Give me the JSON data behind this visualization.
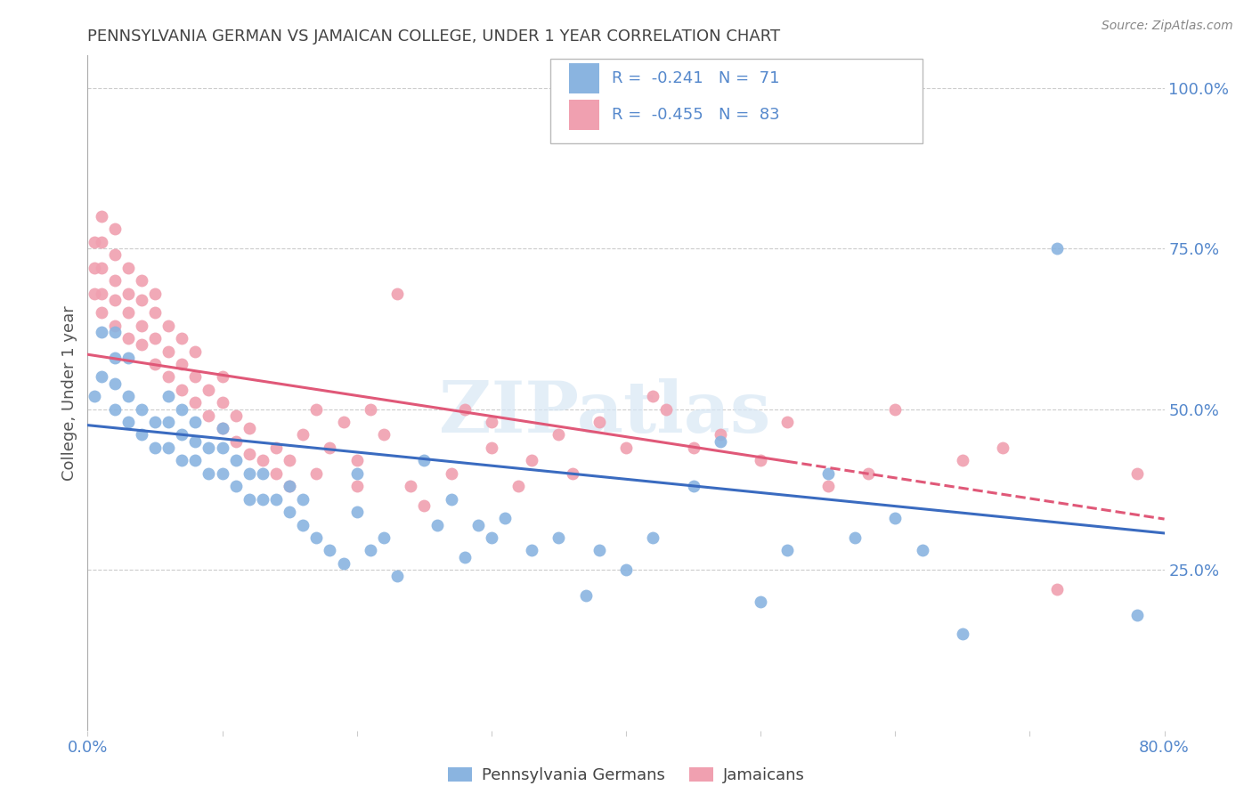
{
  "title": "PENNSYLVANIA GERMAN VS JAMAICAN COLLEGE, UNDER 1 YEAR CORRELATION CHART",
  "source": "Source: ZipAtlas.com",
  "ylabel": "College, Under 1 year",
  "xlim": [
    0.0,
    0.8
  ],
  "ylim": [
    0.0,
    1.05
  ],
  "legend_blue_label": "Pennsylvania Germans",
  "legend_pink_label": "Jamaicans",
  "r_blue": -0.241,
  "n_blue": 71,
  "r_pink": -0.455,
  "n_pink": 83,
  "blue_color": "#8ab4e0",
  "pink_color": "#f0a0b0",
  "blue_line_color": "#3a6bc0",
  "pink_line_color": "#e05878",
  "axis_color": "#5588cc",
  "watermark": "ZIPatlas",
  "blue_scatter_x": [
    0.005,
    0.01,
    0.01,
    0.02,
    0.02,
    0.02,
    0.02,
    0.03,
    0.03,
    0.03,
    0.04,
    0.04,
    0.05,
    0.05,
    0.06,
    0.06,
    0.06,
    0.07,
    0.07,
    0.07,
    0.08,
    0.08,
    0.08,
    0.09,
    0.09,
    0.1,
    0.1,
    0.1,
    0.11,
    0.11,
    0.12,
    0.12,
    0.13,
    0.13,
    0.14,
    0.15,
    0.15,
    0.16,
    0.16,
    0.17,
    0.18,
    0.19,
    0.2,
    0.2,
    0.21,
    0.22,
    0.23,
    0.25,
    0.26,
    0.27,
    0.28,
    0.29,
    0.3,
    0.31,
    0.33,
    0.35,
    0.37,
    0.38,
    0.4,
    0.42,
    0.45,
    0.47,
    0.5,
    0.52,
    0.55,
    0.57,
    0.6,
    0.62,
    0.65,
    0.72,
    0.78
  ],
  "blue_scatter_y": [
    0.52,
    0.55,
    0.62,
    0.5,
    0.54,
    0.58,
    0.62,
    0.48,
    0.52,
    0.58,
    0.46,
    0.5,
    0.44,
    0.48,
    0.44,
    0.48,
    0.52,
    0.42,
    0.46,
    0.5,
    0.42,
    0.45,
    0.48,
    0.4,
    0.44,
    0.4,
    0.44,
    0.47,
    0.38,
    0.42,
    0.36,
    0.4,
    0.36,
    0.4,
    0.36,
    0.34,
    0.38,
    0.32,
    0.36,
    0.3,
    0.28,
    0.26,
    0.4,
    0.34,
    0.28,
    0.3,
    0.24,
    0.42,
    0.32,
    0.36,
    0.27,
    0.32,
    0.3,
    0.33,
    0.28,
    0.3,
    0.21,
    0.28,
    0.25,
    0.3,
    0.38,
    0.45,
    0.2,
    0.28,
    0.4,
    0.3,
    0.33,
    0.28,
    0.15,
    0.75,
    0.18
  ],
  "pink_scatter_x": [
    0.005,
    0.005,
    0.005,
    0.01,
    0.01,
    0.01,
    0.01,
    0.01,
    0.02,
    0.02,
    0.02,
    0.02,
    0.02,
    0.03,
    0.03,
    0.03,
    0.03,
    0.04,
    0.04,
    0.04,
    0.04,
    0.05,
    0.05,
    0.05,
    0.05,
    0.06,
    0.06,
    0.06,
    0.07,
    0.07,
    0.07,
    0.08,
    0.08,
    0.08,
    0.09,
    0.09,
    0.1,
    0.1,
    0.1,
    0.11,
    0.11,
    0.12,
    0.12,
    0.13,
    0.14,
    0.14,
    0.15,
    0.15,
    0.16,
    0.17,
    0.17,
    0.18,
    0.19,
    0.2,
    0.2,
    0.21,
    0.22,
    0.23,
    0.24,
    0.25,
    0.27,
    0.28,
    0.3,
    0.3,
    0.32,
    0.33,
    0.35,
    0.36,
    0.38,
    0.4,
    0.42,
    0.43,
    0.45,
    0.47,
    0.5,
    0.52,
    0.55,
    0.58,
    0.6,
    0.65,
    0.68,
    0.72,
    0.78
  ],
  "pink_scatter_y": [
    0.68,
    0.72,
    0.76,
    0.65,
    0.68,
    0.72,
    0.76,
    0.8,
    0.63,
    0.67,
    0.7,
    0.74,
    0.78,
    0.61,
    0.65,
    0.68,
    0.72,
    0.6,
    0.63,
    0.67,
    0.7,
    0.57,
    0.61,
    0.65,
    0.68,
    0.55,
    0.59,
    0.63,
    0.53,
    0.57,
    0.61,
    0.51,
    0.55,
    0.59,
    0.49,
    0.53,
    0.47,
    0.51,
    0.55,
    0.45,
    0.49,
    0.43,
    0.47,
    0.42,
    0.4,
    0.44,
    0.38,
    0.42,
    0.46,
    0.4,
    0.5,
    0.44,
    0.48,
    0.38,
    0.42,
    0.5,
    0.46,
    0.68,
    0.38,
    0.35,
    0.4,
    0.5,
    0.44,
    0.48,
    0.38,
    0.42,
    0.46,
    0.4,
    0.48,
    0.44,
    0.52,
    0.5,
    0.44,
    0.46,
    0.42,
    0.48,
    0.38,
    0.4,
    0.5,
    0.42,
    0.44,
    0.22,
    0.4
  ]
}
